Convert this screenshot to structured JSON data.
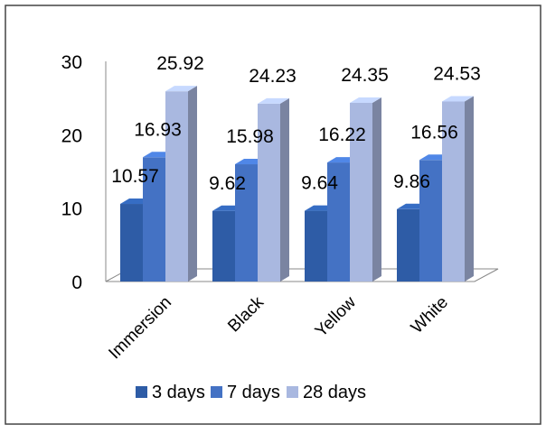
{
  "chart_data": {
    "type": "bar",
    "categories": [
      "Immersion",
      "Black",
      "Yellow",
      "White"
    ],
    "series": [
      {
        "name": "3 days",
        "values": [
          10.57,
          9.62,
          9.64,
          9.86
        ],
        "color": "#2E5CA6"
      },
      {
        "name": "7 days",
        "values": [
          16.93,
          15.98,
          16.22,
          16.56
        ],
        "color": "#4472C4"
      },
      {
        "name": "28 days",
        "values": [
          25.92,
          24.23,
          24.35,
          24.53
        ],
        "color": "#A9B8E0"
      }
    ],
    "yticks": [
      0,
      10,
      20,
      30
    ],
    "ylim": [
      0,
      30
    ],
    "grid": false,
    "legend_position": "bottom",
    "style": "3d-clustered-column"
  }
}
